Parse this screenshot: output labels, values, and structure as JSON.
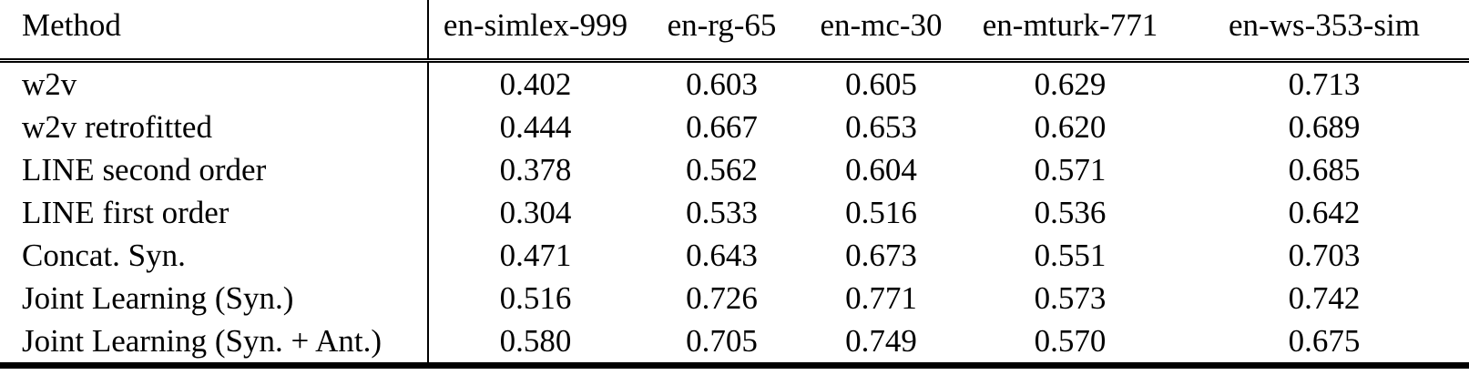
{
  "table": {
    "columns": [
      "Method",
      "en-simlex-999",
      "en-rg-65",
      "en-mc-30",
      "en-mturk-771",
      "en-ws-353-sim"
    ],
    "rows": [
      {
        "method": "w2v",
        "values": [
          "0.402",
          "0.603",
          "0.605",
          "0.629",
          "0.713"
        ],
        "bold": [
          false,
          false,
          false,
          false,
          false
        ]
      },
      {
        "method": "w2v retrofitted",
        "values": [
          "0.444",
          "0.667",
          "0.653",
          "0.620",
          "0.689"
        ],
        "bold": [
          false,
          false,
          false,
          false,
          false
        ]
      },
      {
        "method": "LINE second order",
        "values": [
          "0.378",
          "0.562",
          "0.604",
          "0.571",
          "0.685"
        ],
        "bold": [
          false,
          false,
          false,
          false,
          false
        ]
      },
      {
        "method": "LINE first order",
        "values": [
          "0.304",
          "0.533",
          "0.516",
          "0.536",
          "0.642"
        ],
        "bold": [
          false,
          false,
          false,
          false,
          false
        ]
      },
      {
        "method": "Concat. Syn.",
        "values": [
          "0.471",
          "0.643",
          "0.673",
          "0.551",
          "0.703"
        ],
        "bold": [
          false,
          false,
          false,
          false,
          false
        ]
      },
      {
        "method": "Joint Learning (Syn.)",
        "values": [
          "0.516",
          "0.726",
          "0.771",
          "0.573",
          "0.742"
        ],
        "bold": [
          false,
          true,
          true,
          true,
          true
        ]
      },
      {
        "method": "Joint Learning (Syn. + Ant.)",
        "values": [
          "0.580",
          "0.705",
          "0.749",
          "0.570",
          "0.675"
        ],
        "bold": [
          true,
          false,
          false,
          false,
          false
        ]
      }
    ],
    "colors": {
      "text": "#000000",
      "background": "#ffffff",
      "rule": "#000000"
    }
  }
}
